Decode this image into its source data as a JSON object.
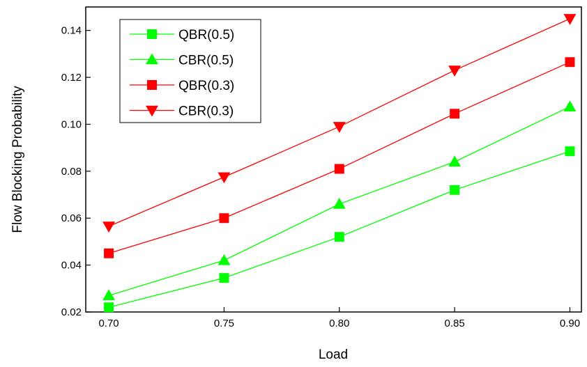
{
  "chart_data": {
    "type": "line",
    "title": "",
    "xlabel": "Load",
    "ylabel": "Flow Blocking Probability",
    "x": [
      0.7,
      0.75,
      0.8,
      0.85,
      0.9
    ],
    "x_tick_labels": [
      "0.70",
      "0.75",
      "0.80",
      "0.85",
      "0.90"
    ],
    "xlim": [
      0.69,
      0.905
    ],
    "ylim": [
      0.02,
      0.15
    ],
    "y_ticks": [
      0.02,
      0.04,
      0.06,
      0.08,
      0.1,
      0.12,
      0.14
    ],
    "y_tick_labels": [
      "0.02",
      "0.04",
      "0.06",
      "0.08",
      "0.10",
      "0.12",
      "0.14"
    ],
    "grid": false,
    "legend_position": "top-left",
    "series": [
      {
        "name": "QBR(0.5)",
        "color": "#00ff00",
        "marker": "square",
        "values": [
          0.022,
          0.0345,
          0.052,
          0.072,
          0.0885
        ]
      },
      {
        "name": "CBR(0.5)",
        "color": "#00ff00",
        "marker": "triangle-up",
        "values": [
          0.027,
          0.042,
          0.066,
          0.084,
          0.1075
        ]
      },
      {
        "name": "QBR(0.3)",
        "color": "#ff0000",
        "marker": "square",
        "values": [
          0.045,
          0.06,
          0.081,
          0.1045,
          0.1265
        ]
      },
      {
        "name": "CBR(0.3)",
        "color": "#ff0000",
        "marker": "triangle-down",
        "values": [
          0.0565,
          0.0775,
          0.099,
          0.123,
          0.145
        ]
      }
    ]
  }
}
